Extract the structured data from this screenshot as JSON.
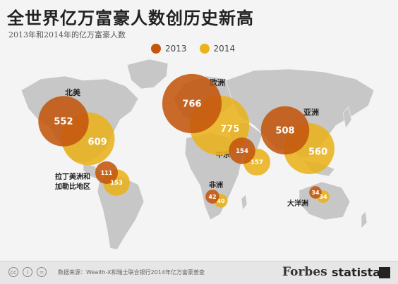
{
  "header": {
    "title": "全世界亿万富豪人数创历史新高",
    "subtitle": "2013年和2014年的亿万富豪人数"
  },
  "colors": {
    "y2013": "#c4560e",
    "y2014": "#e9b31c",
    "map_land": "#c7c7c7",
    "background": "#f4f4f4"
  },
  "chart_data": {
    "type": "bubble-map",
    "legend": [
      {
        "label": "2013",
        "color": "#c4560e"
      },
      {
        "label": "2014",
        "color": "#e9b31c"
      }
    ],
    "legend_position": "top-center",
    "regions": [
      {
        "name": "北美",
        "2013": 552,
        "2014": 609
      },
      {
        "name": "欧洲",
        "2013": 766,
        "2014": 775
      },
      {
        "name": "亚洲",
        "2013": 508,
        "2014": 560
      },
      {
        "name": "中东",
        "2013": 154,
        "2014": 157
      },
      {
        "name": "拉丁美洲和\n加勒比地区",
        "2013": 111,
        "2014": 153
      },
      {
        "name": "非洲",
        "2013": 42,
        "2014": 40
      },
      {
        "name": "大洋洲",
        "2013": 34,
        "2014": 34
      }
    ]
  },
  "footer": {
    "icons": [
      "cc-icon",
      "attribution-icon",
      "equals-icon"
    ],
    "source": "数据来源：Wealth-X和瑞士联合银行2014年亿万富豪普查",
    "brand1": "Forbes",
    "brand2": "statista"
  }
}
